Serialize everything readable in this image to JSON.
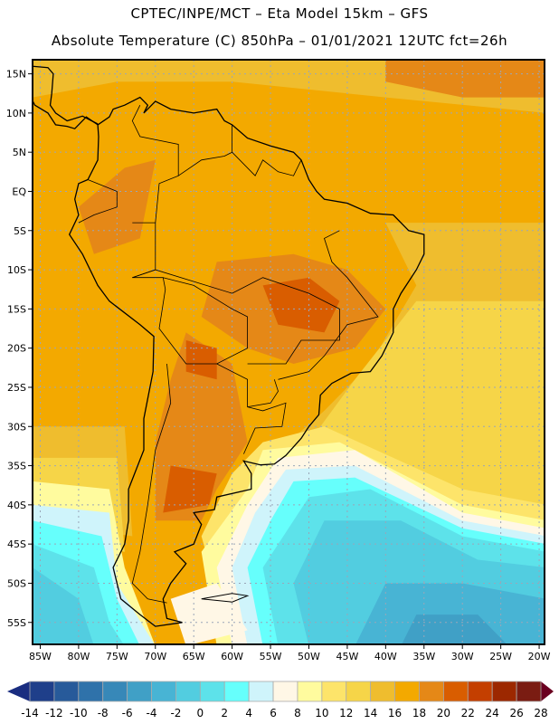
{
  "header": {
    "title_line1": "CPTEC/INPE/MCT –  Eta Model 15km – GFS",
    "title_line2": "Absolute Temperature (C) 850hPa – 01/01/2021 12UTC fct=26h"
  },
  "map": {
    "lon_range": [
      -86,
      -19.3
    ],
    "lat_range": [
      -57.8,
      16.8
    ],
    "lat_ticks": [
      {
        "v": 15,
        "label": "15N"
      },
      {
        "v": 10,
        "label": "10N"
      },
      {
        "v": 5,
        "label": "5N"
      },
      {
        "v": 0,
        "label": "EQ"
      },
      {
        "v": -5,
        "label": "5S"
      },
      {
        "v": -10,
        "label": "10S"
      },
      {
        "v": -15,
        "label": "15S"
      },
      {
        "v": -20,
        "label": "20S"
      },
      {
        "v": -25,
        "label": "25S"
      },
      {
        "v": -30,
        "label": "30S"
      },
      {
        "v": -35,
        "label": "35S"
      },
      {
        "v": -40,
        "label": "40S"
      },
      {
        "v": -45,
        "label": "45S"
      },
      {
        "v": -50,
        "label": "50S"
      },
      {
        "v": -55,
        "label": "55S"
      }
    ],
    "lon_ticks": [
      {
        "v": -85,
        "label": "85W"
      },
      {
        "v": -80,
        "label": "80W"
      },
      {
        "v": -75,
        "label": "75W"
      },
      {
        "v": -70,
        "label": "70W"
      },
      {
        "v": -65,
        "label": "65W"
      },
      {
        "v": -60,
        "label": "60W"
      },
      {
        "v": -55,
        "label": "55W"
      },
      {
        "v": -50,
        "label": "50W"
      },
      {
        "v": -45,
        "label": "45W"
      },
      {
        "v": -40,
        "label": "40W"
      },
      {
        "v": -35,
        "label": "35W"
      },
      {
        "v": -30,
        "label": "30W"
      },
      {
        "v": -25,
        "label": "25W"
      },
      {
        "v": -20,
        "label": "20W"
      }
    ]
  },
  "colorbar": {
    "labels": [
      "-14",
      "-12",
      "-10",
      "-8",
      "-6",
      "-4",
      "-2",
      "0",
      "2",
      "4",
      "6",
      "8",
      "10",
      "12",
      "14",
      "16",
      "18",
      "20",
      "22",
      "24",
      "26",
      "28"
    ],
    "colors": [
      "#1f3f8a",
      "#275a9a",
      "#2f72aa",
      "#3788b8",
      "#40a0c6",
      "#48b4d4",
      "#52cde0",
      "#5de2ea",
      "#66fffc",
      "#cff4fb",
      "#fff7e6",
      "#fffb9e",
      "#fde46a",
      "#f6d548",
      "#efbd2e",
      "#f3a900",
      "#e58817",
      "#d95d00",
      "#c43f00",
      "#9c2800",
      "#7a1c12"
    ],
    "under_color": "#1a2d80",
    "over_color": "#6b0020"
  }
}
